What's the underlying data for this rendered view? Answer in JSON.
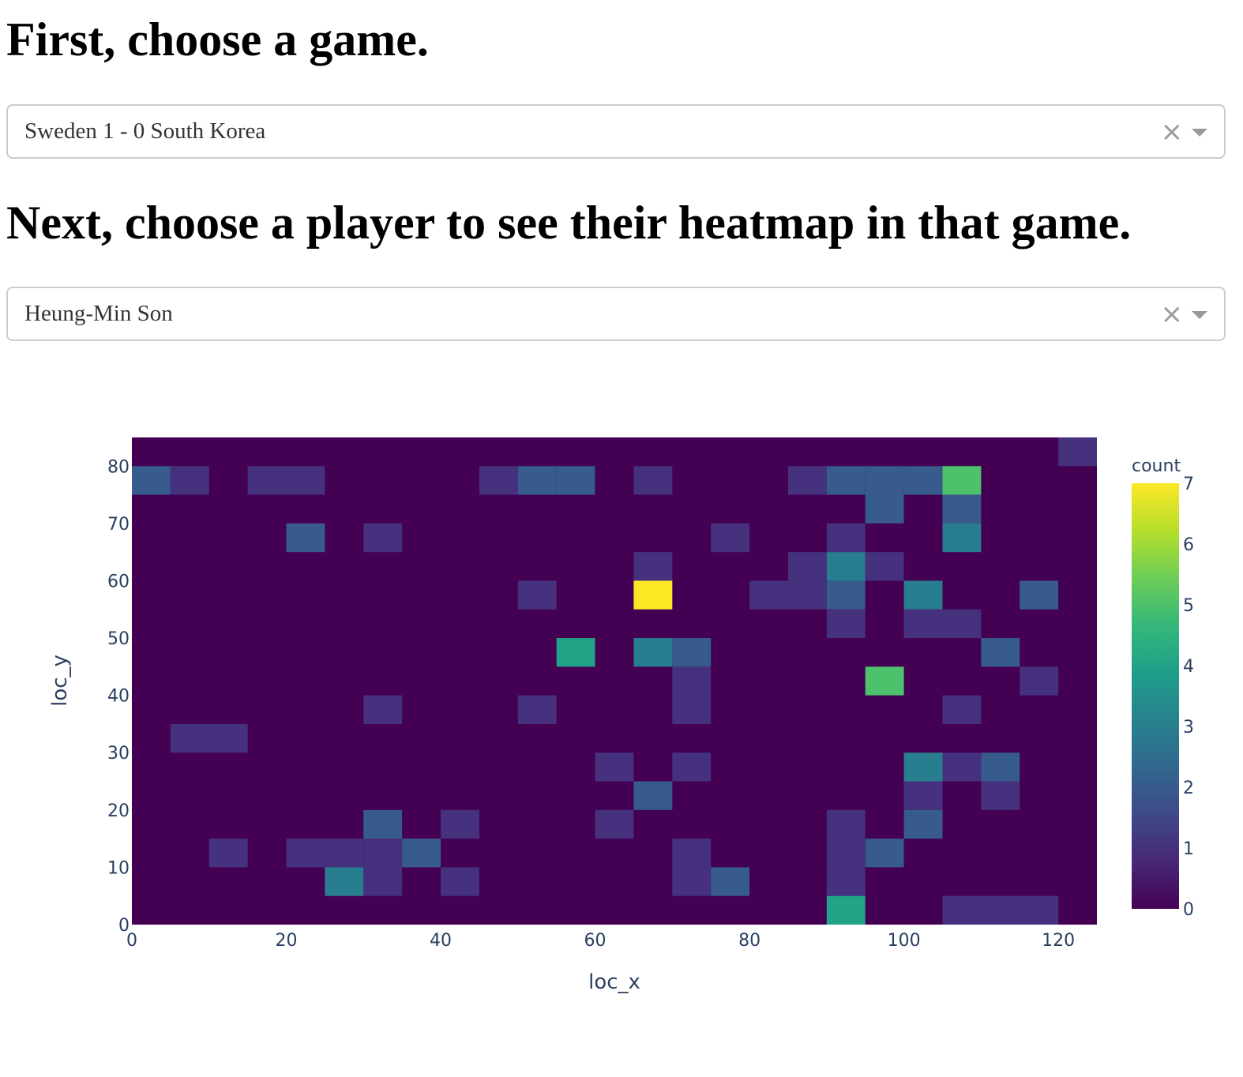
{
  "game_section": {
    "heading": "First, choose a game.",
    "selected_value": "Sweden 1 - 0 South Korea",
    "clear_icon": "×"
  },
  "player_section": {
    "heading": "Next, choose a player to see their heatmap in that game.",
    "selected_value": "Heung-Min Son",
    "clear_icon": "×"
  },
  "chart_data": {
    "type": "heatmap",
    "title": "",
    "xlabel": "loc_x",
    "ylabel": "loc_y",
    "xlim": [
      0,
      125
    ],
    "ylim": [
      0,
      85
    ],
    "bin_size": 5,
    "x_ticks": [
      0,
      20,
      40,
      60,
      80,
      100,
      120
    ],
    "y_ticks": [
      0,
      10,
      20,
      30,
      40,
      50,
      60,
      70,
      80
    ],
    "colorbar": {
      "title": "count",
      "min": 0,
      "max": 7,
      "ticks": [
        0,
        1,
        2,
        3,
        4,
        5,
        6,
        7
      ],
      "colorscale": [
        "#440154",
        "#482878",
        "#3e4989",
        "#31688e",
        "#26828e",
        "#1f9e89",
        "#35b779",
        "#6ece58",
        "#b5de2b",
        "#fde725"
      ]
    },
    "cells": [
      {
        "x": 120,
        "y": 80,
        "count": 1
      },
      {
        "x": 0,
        "y": 75,
        "count": 2
      },
      {
        "x": 5,
        "y": 75,
        "count": 1
      },
      {
        "x": 15,
        "y": 75,
        "count": 1
      },
      {
        "x": 20,
        "y": 75,
        "count": 1
      },
      {
        "x": 45,
        "y": 75,
        "count": 1
      },
      {
        "x": 50,
        "y": 75,
        "count": 2
      },
      {
        "x": 55,
        "y": 75,
        "count": 2
      },
      {
        "x": 65,
        "y": 75,
        "count": 1
      },
      {
        "x": 85,
        "y": 75,
        "count": 1
      },
      {
        "x": 90,
        "y": 75,
        "count": 2
      },
      {
        "x": 95,
        "y": 75,
        "count": 2
      },
      {
        "x": 100,
        "y": 75,
        "count": 2
      },
      {
        "x": 105,
        "y": 75,
        "count": 5
      },
      {
        "x": 95,
        "y": 70,
        "count": 2
      },
      {
        "x": 105,
        "y": 70,
        "count": 2
      },
      {
        "x": 20,
        "y": 65,
        "count": 2
      },
      {
        "x": 30,
        "y": 65,
        "count": 1
      },
      {
        "x": 75,
        "y": 65,
        "count": 1
      },
      {
        "x": 90,
        "y": 65,
        "count": 1
      },
      {
        "x": 105,
        "y": 65,
        "count": 3
      },
      {
        "x": 65,
        "y": 60,
        "count": 1
      },
      {
        "x": 85,
        "y": 60,
        "count": 1
      },
      {
        "x": 90,
        "y": 60,
        "count": 3
      },
      {
        "x": 95,
        "y": 60,
        "count": 1
      },
      {
        "x": 50,
        "y": 55,
        "count": 1
      },
      {
        "x": 65,
        "y": 55,
        "count": 7
      },
      {
        "x": 80,
        "y": 55,
        "count": 1
      },
      {
        "x": 85,
        "y": 55,
        "count": 1
      },
      {
        "x": 90,
        "y": 55,
        "count": 2
      },
      {
        "x": 100,
        "y": 55,
        "count": 3
      },
      {
        "x": 115,
        "y": 55,
        "count": 2
      },
      {
        "x": 90,
        "y": 50,
        "count": 1
      },
      {
        "x": 100,
        "y": 50,
        "count": 1
      },
      {
        "x": 105,
        "y": 50,
        "count": 1
      },
      {
        "x": 55,
        "y": 45,
        "count": 4
      },
      {
        "x": 65,
        "y": 45,
        "count": 3
      },
      {
        "x": 70,
        "y": 45,
        "count": 2
      },
      {
        "x": 110,
        "y": 45,
        "count": 2
      },
      {
        "x": 70,
        "y": 40,
        "count": 1
      },
      {
        "x": 95,
        "y": 40,
        "count": 5
      },
      {
        "x": 115,
        "y": 40,
        "count": 1
      },
      {
        "x": 30,
        "y": 35,
        "count": 1
      },
      {
        "x": 50,
        "y": 35,
        "count": 1
      },
      {
        "x": 70,
        "y": 35,
        "count": 1
      },
      {
        "x": 105,
        "y": 35,
        "count": 1
      },
      {
        "x": 5,
        "y": 30,
        "count": 1
      },
      {
        "x": 10,
        "y": 30,
        "count": 1
      },
      {
        "x": 60,
        "y": 25,
        "count": 1
      },
      {
        "x": 70,
        "y": 25,
        "count": 1
      },
      {
        "x": 100,
        "y": 25,
        "count": 3
      },
      {
        "x": 105,
        "y": 25,
        "count": 1
      },
      {
        "x": 110,
        "y": 25,
        "count": 2
      },
      {
        "x": 65,
        "y": 20,
        "count": 2
      },
      {
        "x": 100,
        "y": 20,
        "count": 1
      },
      {
        "x": 110,
        "y": 20,
        "count": 1
      },
      {
        "x": 30,
        "y": 15,
        "count": 2
      },
      {
        "x": 40,
        "y": 15,
        "count": 1
      },
      {
        "x": 60,
        "y": 15,
        "count": 1
      },
      {
        "x": 90,
        "y": 15,
        "count": 1
      },
      {
        "x": 100,
        "y": 15,
        "count": 2
      },
      {
        "x": 10,
        "y": 10,
        "count": 1
      },
      {
        "x": 20,
        "y": 10,
        "count": 1
      },
      {
        "x": 25,
        "y": 10,
        "count": 1
      },
      {
        "x": 30,
        "y": 10,
        "count": 1
      },
      {
        "x": 35,
        "y": 10,
        "count": 2
      },
      {
        "x": 70,
        "y": 10,
        "count": 1
      },
      {
        "x": 90,
        "y": 10,
        "count": 1
      },
      {
        "x": 95,
        "y": 10,
        "count": 2
      },
      {
        "x": 25,
        "y": 5,
        "count": 3
      },
      {
        "x": 30,
        "y": 5,
        "count": 1
      },
      {
        "x": 40,
        "y": 5,
        "count": 1
      },
      {
        "x": 70,
        "y": 5,
        "count": 1
      },
      {
        "x": 75,
        "y": 5,
        "count": 2
      },
      {
        "x": 90,
        "y": 5,
        "count": 1
      },
      {
        "x": 90,
        "y": 0,
        "count": 4
      },
      {
        "x": 105,
        "y": 0,
        "count": 1
      },
      {
        "x": 110,
        "y": 0,
        "count": 1
      },
      {
        "x": 115,
        "y": 0,
        "count": 1
      }
    ]
  }
}
